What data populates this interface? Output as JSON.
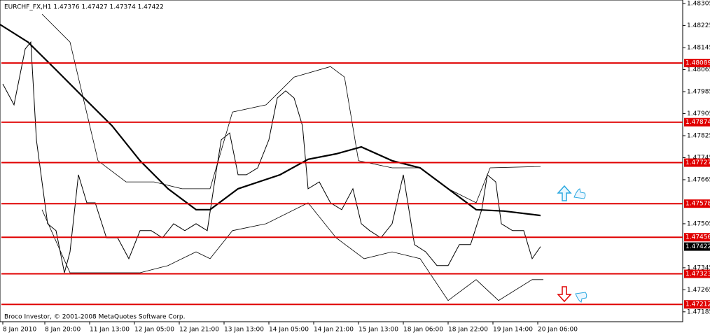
{
  "chart_data": {
    "type": "line",
    "title": "EURCHF_FX,H1  1.47376 1.47427 1.47374 1.47422",
    "footer": "Broco Investor, © 2001-2008 MetaQuotes Software Corp.",
    "xlim": [
      0,
      243.75
    ],
    "ylim": [
      1.47149,
      1.48318
    ],
    "xticks": [
      {
        "value": 1,
        "label": "8 Jan 2010"
      },
      {
        "value": 16,
        "label": "8 Jan 20:00"
      },
      {
        "value": 32,
        "label": "11 Jan 13:00"
      },
      {
        "value": 48,
        "label": "12 Jan 05:00"
      },
      {
        "value": 64,
        "label": "12 Jan 21:00"
      },
      {
        "value": 80,
        "label": "13 Jan 13:00"
      },
      {
        "value": 96,
        "label": "14 Jan 05:00"
      },
      {
        "value": 112,
        "label": "14 Jan 21:00"
      },
      {
        "value": 128,
        "label": "15 Jan 13:00"
      },
      {
        "value": 144,
        "label": "18 Jan 06:00"
      },
      {
        "value": 160,
        "label": "18 Jan 22:00"
      },
      {
        "value": 176,
        "label": "19 Jan 14:00"
      },
      {
        "value": 192,
        "label": "20 Jan 06:00"
      }
    ],
    "yticks": [
      1.48305,
      1.48225,
      1.48145,
      1.48065,
      1.47985,
      1.47905,
      1.47825,
      1.47745,
      1.47665,
      1.47505,
      1.47345,
      1.47265,
      1.47185
    ],
    "levels": [
      1.48089,
      1.47874,
      1.47727,
      1.47578,
      1.47456,
      1.47323,
      1.47212
    ],
    "level_color": "#e00000",
    "current_price": 1.47422,
    "series": [
      {
        "color": "#000000",
        "width": 1,
        "x": [
          1,
          5,
          9,
          11,
          13,
          15,
          17,
          20,
          23,
          25,
          28,
          31,
          34,
          38,
          42,
          46,
          50,
          54,
          58,
          62,
          66,
          70,
          74,
          77,
          79,
          82,
          85,
          88,
          92,
          96,
          99,
          102,
          105,
          108,
          110,
          114,
          118,
          122,
          126,
          129,
          132,
          136,
          140,
          144,
          148,
          152,
          156,
          160,
          164,
          168,
          172,
          174,
          177,
          179,
          183,
          187,
          190,
          193
        ],
        "values": [
          1.48013,
          1.47937,
          1.4814,
          1.48165,
          1.4781,
          1.47657,
          1.47505,
          1.4748,
          1.47327,
          1.47403,
          1.47683,
          1.47581,
          1.47581,
          1.47454,
          1.47454,
          1.47378,
          1.4748,
          1.4748,
          1.47454,
          1.47505,
          1.4748,
          1.47505,
          1.4748,
          1.47683,
          1.4781,
          1.47835,
          1.47683,
          1.47683,
          1.47708,
          1.4781,
          1.47962,
          1.47988,
          1.47962,
          1.47861,
          1.47632,
          1.47657,
          1.47581,
          1.47556,
          1.47632,
          1.47505,
          1.4748,
          1.47454,
          1.47505,
          1.47683,
          1.47429,
          1.47403,
          1.47353,
          1.47353,
          1.47429,
          1.47429,
          1.47556,
          1.47683,
          1.47657,
          1.47505,
          1.4748,
          1.4748,
          1.47378,
          1.47422
        ]
      },
      {
        "color": "#000000",
        "width": 2.2,
        "x": [
          0,
          10,
          20,
          30,
          40,
          50,
          60,
          70,
          75,
          85,
          100,
          110,
          120,
          129,
          140,
          150,
          160,
          170,
          180,
          193
        ],
        "values": [
          1.48229,
          1.48165,
          1.48064,
          1.47962,
          1.47861,
          1.47734,
          1.47632,
          1.47556,
          1.47556,
          1.47632,
          1.47683,
          1.47739,
          1.47759,
          1.47784,
          1.47734,
          1.47708,
          1.47632,
          1.47556,
          1.47551,
          1.47535
        ]
      },
      {
        "color": "#000000",
        "width": 0.8,
        "x": [
          15,
          25,
          35,
          45,
          55,
          65,
          75,
          83,
          95,
          105,
          118,
          123,
          128,
          140,
          150,
          160,
          170,
          175,
          193
        ],
        "values": [
          1.48267,
          1.48165,
          1.47734,
          1.47657,
          1.47657,
          1.47632,
          1.47632,
          1.47911,
          1.47937,
          1.48038,
          1.48076,
          1.48038,
          1.47734,
          1.47708,
          1.47708,
          1.47632,
          1.47581,
          1.47708,
          1.47713
        ]
      },
      {
        "color": "#000000",
        "width": 0.8,
        "x": [
          15,
          25,
          35,
          50,
          60,
          70,
          75,
          83,
          95,
          110,
          120,
          130,
          140,
          150,
          160,
          170,
          178,
          190,
          194
        ],
        "values": [
          1.47556,
          1.47327,
          1.47327,
          1.47327,
          1.47353,
          1.47403,
          1.47378,
          1.4748,
          1.47505,
          1.47581,
          1.47454,
          1.47378,
          1.47403,
          1.47378,
          1.47226,
          1.47302,
          1.47226,
          1.47302,
          1.47302
        ]
      }
    ]
  }
}
